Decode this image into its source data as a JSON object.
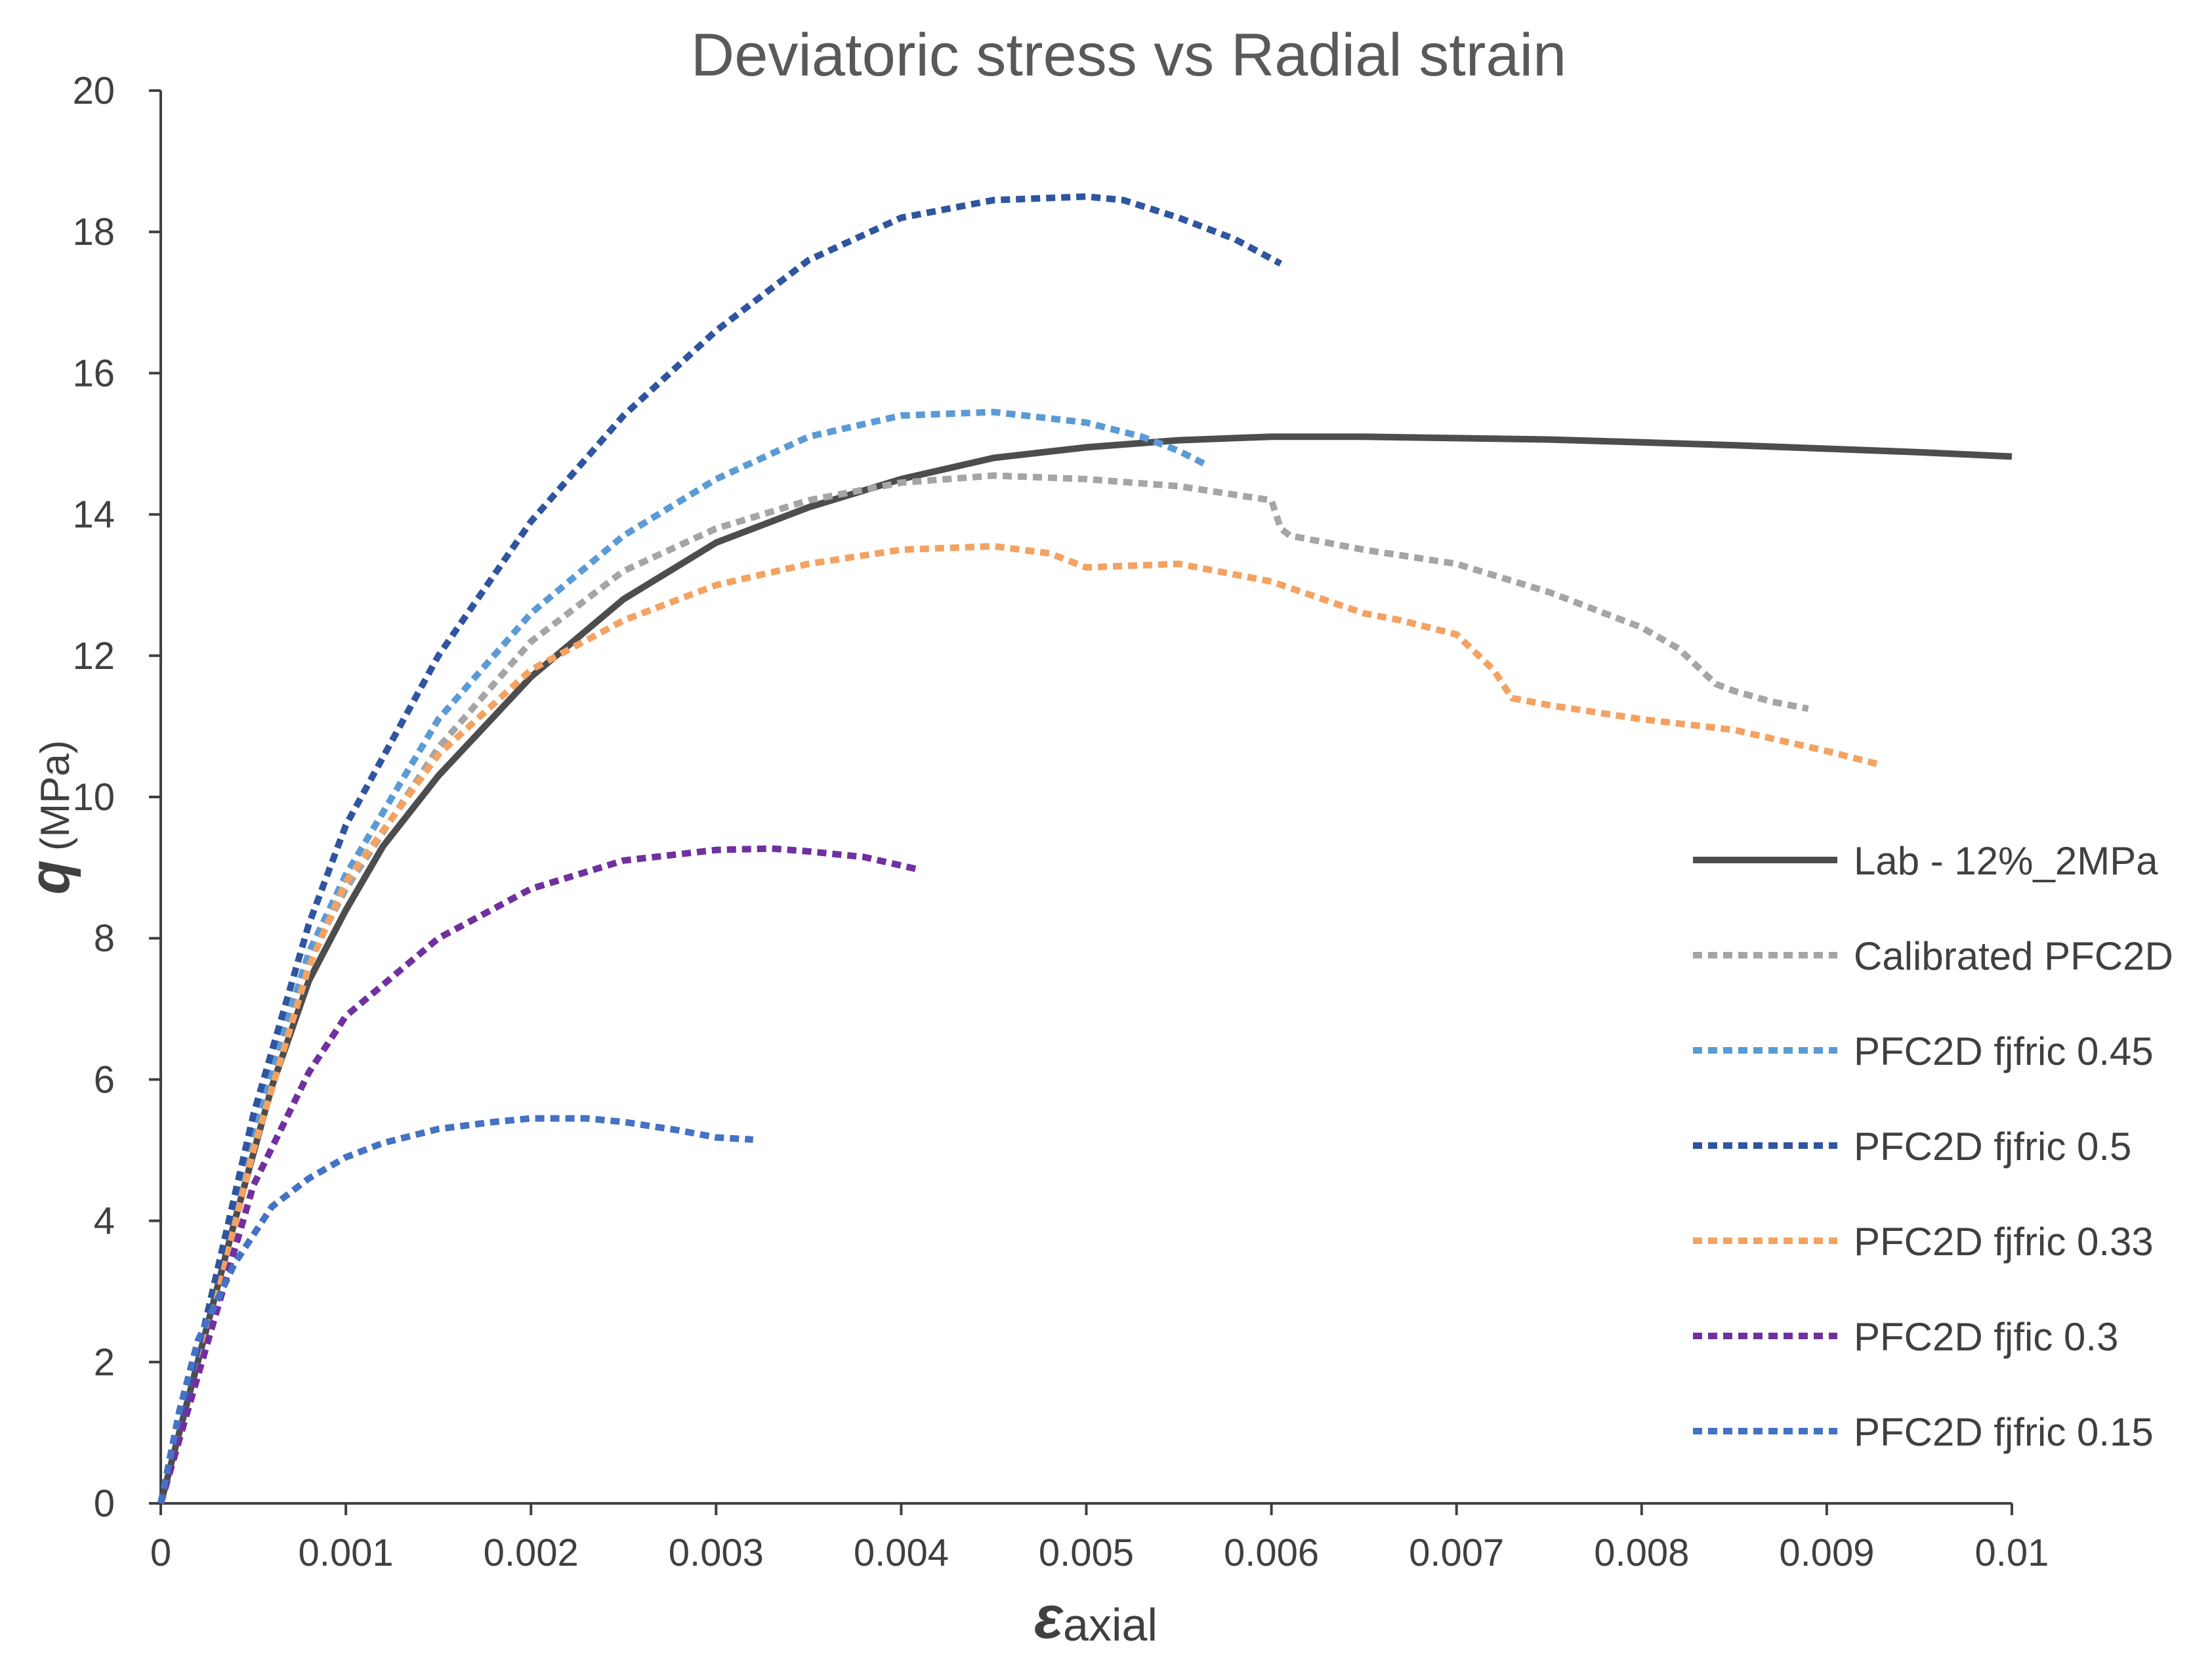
{
  "chart_data": {
    "type": "line",
    "title": "Deviatoric stress vs Radial strain",
    "xlabel": {
      "symbol": "ε",
      "subscript": "axial"
    },
    "ylabel": {
      "symbol": "q",
      "unit": "(MPa)"
    },
    "xlim": [
      0,
      0.01
    ],
    "ylim": [
      0,
      20
    ],
    "xticks": [
      "0",
      "0.001",
      "0.002",
      "0.003",
      "0.004",
      "0.005",
      "0.006",
      "0.007",
      "0.008",
      "0.009",
      "0.01"
    ],
    "yticks": [
      "0",
      "2",
      "4",
      "6",
      "8",
      "10",
      "12",
      "14",
      "16",
      "18",
      "20"
    ],
    "grid": false,
    "legend_position": "right",
    "series": [
      {
        "name": "Lab - 12%_2MPa",
        "color": "#4d4d4d",
        "dash": "solid",
        "x": [
          0,
          0.0002,
          0.0004,
          0.0006,
          0.0008,
          0.001,
          0.0012,
          0.0015,
          0.002,
          0.0025,
          0.003,
          0.0035,
          0.004,
          0.0045,
          0.005,
          0.0055,
          0.006,
          0.0065,
          0.007,
          0.0075,
          0.008,
          0.0085,
          0.009,
          0.0095,
          0.01
        ],
        "y": [
          0,
          2.0,
          4.0,
          5.9,
          7.4,
          8.4,
          9.3,
          10.3,
          11.7,
          12.8,
          13.6,
          14.1,
          14.5,
          14.8,
          14.95,
          15.05,
          15.1,
          15.1,
          15.08,
          15.06,
          15.02,
          14.98,
          14.93,
          14.88,
          14.82
        ]
      },
      {
        "name": "Calibrated PFC2D",
        "color": "#a5a5a5",
        "dash": "dashed",
        "x": [
          0,
          0.0002,
          0.0005,
          0.0008,
          0.001,
          0.0015,
          0.002,
          0.0025,
          0.003,
          0.0035,
          0.004,
          0.0045,
          0.005,
          0.0055,
          0.006,
          0.00605,
          0.0061,
          0.0065,
          0.007,
          0.0075,
          0.008,
          0.0082,
          0.0084,
          0.0085,
          0.0087,
          0.0089
        ],
        "y": [
          0,
          2.0,
          5.3,
          7.7,
          8.7,
          10.7,
          12.2,
          13.2,
          13.8,
          14.2,
          14.45,
          14.55,
          14.5,
          14.4,
          14.2,
          13.8,
          13.7,
          13.5,
          13.3,
          12.9,
          12.4,
          12.1,
          11.6,
          11.5,
          11.35,
          11.25
        ]
      },
      {
        "name": "PFC2D fjfric 0.45",
        "color": "#5b9bd5",
        "dash": "dashed",
        "x": [
          0,
          0.0002,
          0.0005,
          0.0008,
          0.001,
          0.0015,
          0.002,
          0.0025,
          0.003,
          0.0035,
          0.004,
          0.0045,
          0.005,
          0.0053,
          0.0055,
          0.00565
        ],
        "y": [
          0,
          2.0,
          5.3,
          7.8,
          8.9,
          11.1,
          12.6,
          13.7,
          14.5,
          15.1,
          15.4,
          15.45,
          15.3,
          15.1,
          14.9,
          14.7
        ]
      },
      {
        "name": "PFC2D fjfric 0.5",
        "color": "#2f55a0",
        "dash": "dashed",
        "x": [
          0,
          0.0002,
          0.0005,
          0.0008,
          0.001,
          0.0015,
          0.002,
          0.0025,
          0.003,
          0.0035,
          0.004,
          0.0045,
          0.005,
          0.0052,
          0.0055,
          0.0058,
          0.00605
        ],
        "y": [
          0,
          2.1,
          5.5,
          8.2,
          9.6,
          12.0,
          13.9,
          15.4,
          16.6,
          17.6,
          18.2,
          18.45,
          18.5,
          18.45,
          18.2,
          17.9,
          17.55
        ]
      },
      {
        "name": "PFC2D fjfric 0.33",
        "color": "#f4a261",
        "dash": "dashed",
        "x": [
          0,
          0.0002,
          0.0005,
          0.0008,
          0.001,
          0.0015,
          0.002,
          0.0025,
          0.003,
          0.0035,
          0.004,
          0.0045,
          0.0048,
          0.005,
          0.0055,
          0.006,
          0.0065,
          0.0067,
          0.007,
          0.0072,
          0.0073,
          0.0075,
          0.008,
          0.0085,
          0.009,
          0.0093
        ],
        "y": [
          0,
          1.8,
          5.0,
          7.6,
          8.8,
          10.6,
          11.8,
          12.5,
          13.0,
          13.3,
          13.5,
          13.55,
          13.45,
          13.25,
          13.3,
          13.05,
          12.6,
          12.5,
          12.3,
          11.8,
          11.4,
          11.3,
          11.1,
          10.95,
          10.65,
          10.45
        ]
      },
      {
        "name": "PFC2D fjfic 0.3",
        "color": "#7030a0",
        "dash": "dashed",
        "x": [
          0,
          0.0002,
          0.0005,
          0.0008,
          0.001,
          0.0015,
          0.002,
          0.0025,
          0.003,
          0.0033,
          0.0035,
          0.0038,
          0.0041
        ],
        "y": [
          0,
          1.8,
          4.5,
          6.1,
          6.9,
          8.0,
          8.7,
          9.1,
          9.25,
          9.27,
          9.23,
          9.15,
          8.97
        ]
      },
      {
        "name": "PFC2D fjfric 0.15",
        "color": "#4472c4",
        "dash": "dashed",
        "x": [
          0,
          0.0001,
          0.0002,
          0.0004,
          0.0006,
          0.0008,
          0.001,
          0.0012,
          0.0015,
          0.0018,
          0.002,
          0.0023,
          0.0025,
          0.0028,
          0.003,
          0.0032
        ],
        "y": [
          0,
          1.3,
          2.3,
          3.4,
          4.2,
          4.6,
          4.9,
          5.1,
          5.3,
          5.4,
          5.45,
          5.45,
          5.4,
          5.28,
          5.18,
          5.15
        ]
      }
    ]
  }
}
